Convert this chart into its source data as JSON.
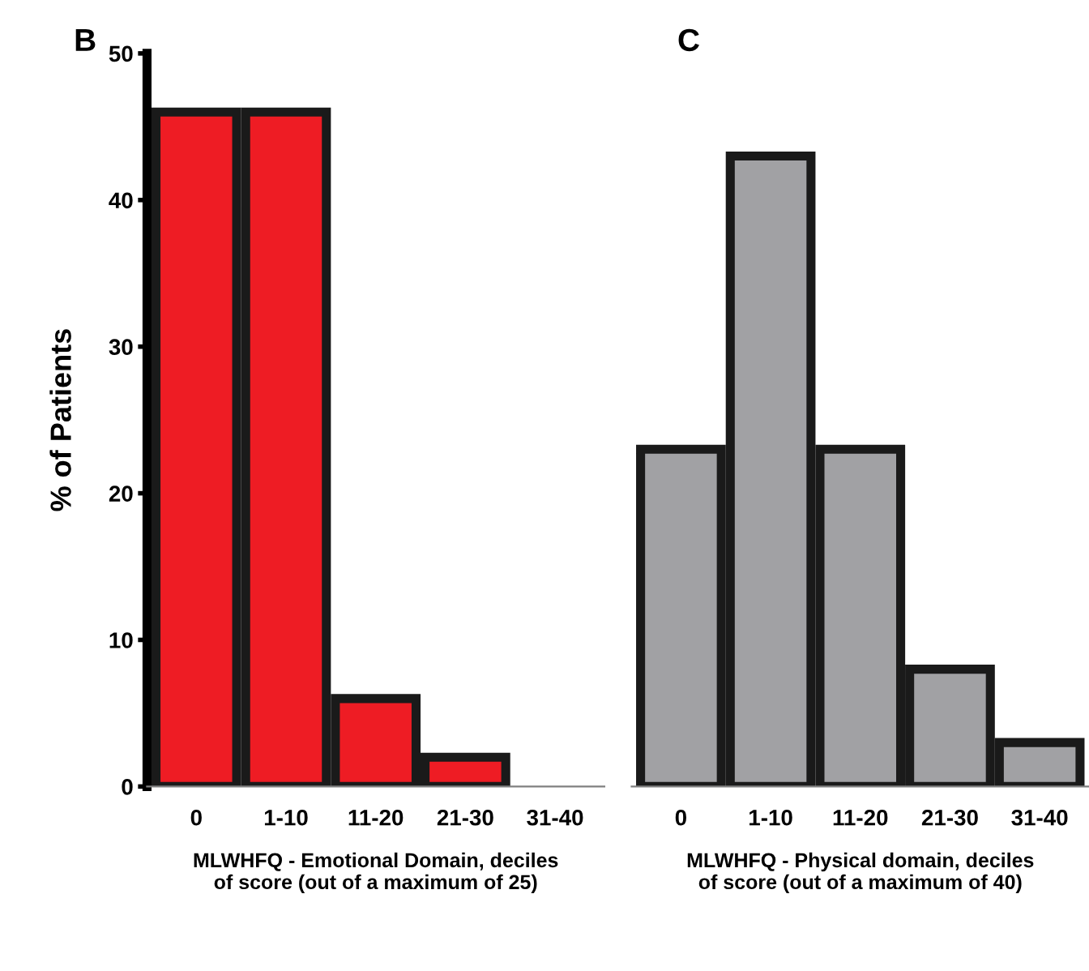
{
  "chart_data": [
    {
      "type": "bar",
      "title": "B",
      "ylabel": "% of Patients",
      "xlabel": "MLWHFQ - Emotional Domain, deciles\nof score (out of a maximum of 25)",
      "categories": [
        "0",
        "1-10",
        "11-20",
        "21-30",
        "31-40"
      ],
      "values": [
        46,
        46,
        6,
        2,
        0
      ],
      "color": "#ee1c24",
      "ylim": [
        0,
        50
      ],
      "yticks": [
        0,
        10,
        20,
        30,
        40,
        50
      ],
      "grid": false
    },
    {
      "type": "bar",
      "title": "C",
      "xlabel": "MLWHFQ - Physical domain, deciles\nof score (out of a maximum of 40)",
      "categories": [
        "0",
        "1-10",
        "11-20",
        "21-30",
        "31-40"
      ],
      "values": [
        23,
        43,
        23,
        8,
        3
      ],
      "color": "#a1a1a4",
      "ylim": [
        0,
        50
      ],
      "tick_labels": "x",
      "grid": false
    }
  ]
}
